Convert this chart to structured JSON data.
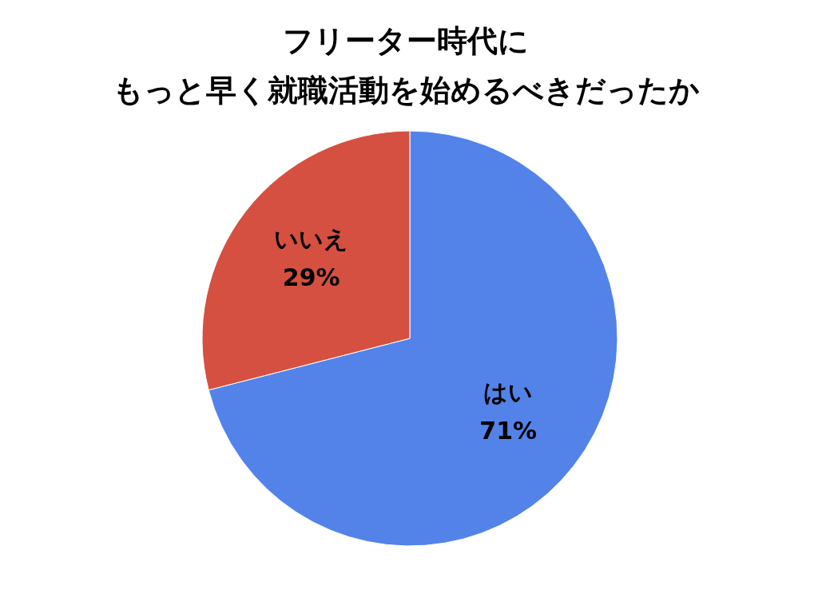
{
  "chart_data": {
    "type": "pie",
    "title": "フリーター時代に",
    "subtitle": "もっと早く就職活動を始めるべきだったか",
    "categories": [
      "はい",
      "いいえ"
    ],
    "values": [
      71,
      29
    ],
    "value_labels": [
      "71%",
      "29%"
    ],
    "colors": [
      "#5383e8",
      "#d55040"
    ],
    "legend": false
  }
}
